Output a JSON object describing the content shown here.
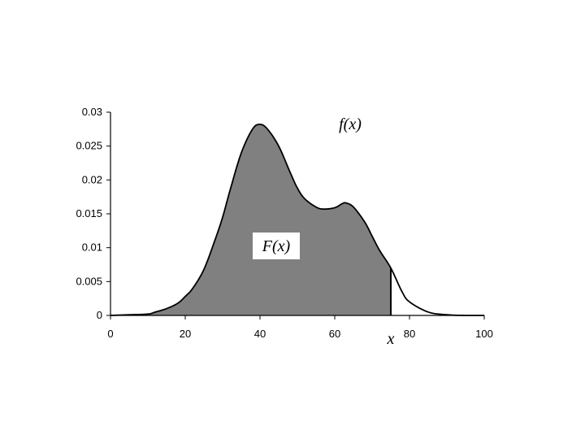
{
  "chart_data": {
    "type": "area",
    "xlim": [
      0,
      100
    ],
    "ylim": [
      0,
      0.03
    ],
    "x_ticks": [
      0,
      20,
      40,
      60,
      80,
      100
    ],
    "y_ticks": [
      0,
      0.005,
      0.01,
      0.015,
      0.02,
      0.025,
      0.03
    ],
    "x_tick_labels": [
      "0",
      "20",
      "40",
      "60",
      "80",
      "100"
    ],
    "y_tick_labels": [
      "0",
      "0.005",
      "0.01",
      "0.015",
      "0.02",
      "0.025",
      "0.03"
    ],
    "xlabel": "x",
    "grid": false,
    "curve_label": "f(x)",
    "area_label": "F(x)",
    "shaded_upper_x": 75,
    "fill_color": "#808080",
    "line_color": "#000000",
    "x": [
      0,
      5,
      10,
      12,
      15,
      18,
      20,
      22,
      25,
      28,
      30,
      32,
      35,
      38,
      40,
      42,
      45,
      48,
      50,
      52,
      55,
      57,
      60,
      62,
      63,
      65,
      68,
      70,
      72,
      75,
      78,
      80,
      85,
      90,
      95,
      100
    ],
    "y": [
      0,
      0.0001,
      0.0002,
      0.0005,
      0.001,
      0.0018,
      0.0028,
      0.004,
      0.0068,
      0.0112,
      0.0145,
      0.0185,
      0.024,
      0.0275,
      0.0282,
      0.0275,
      0.025,
      0.0212,
      0.0188,
      0.0172,
      0.016,
      0.0157,
      0.0159,
      0.0165,
      0.0166,
      0.016,
      0.0138,
      0.0117,
      0.0096,
      0.007,
      0.0035,
      0.002,
      0.0005,
      0.0001,
      0,
      0
    ]
  }
}
